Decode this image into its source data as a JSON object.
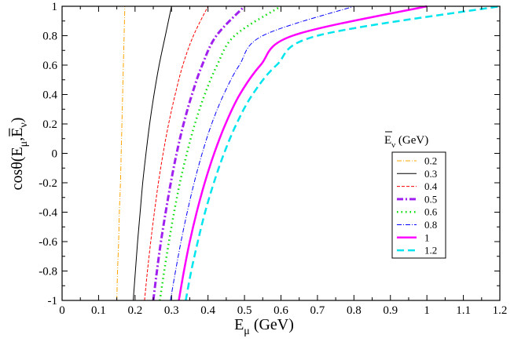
{
  "chart_data": {
    "type": "line",
    "title": "",
    "xlabel": "E",
    "xlabel_sub": "μ",
    "xlabel_unit": " (GeV)",
    "ylabel": "cosθ(E",
    "ylabel_sub1": "μ",
    "ylabel_sep": ",",
    "ylabel_main2": "E",
    "ylabel_sub2": "ν",
    "ylabel_end": ")",
    "xlim": [
      0,
      1.2
    ],
    "ylim": [
      -1,
      1
    ],
    "xticks": [
      "0",
      "0.1",
      "0.2",
      "0.3",
      "0.4",
      "0.5",
      "0.6",
      "0.7",
      "0.8",
      "0.9",
      "1",
      "1.1",
      "1.2"
    ],
    "yticks": [
      "-1",
      "-0.8",
      "-0.6",
      "-0.4",
      "-0.2",
      "0",
      "0.2",
      "0.4",
      "0.6",
      "0.8",
      "1"
    ],
    "legend": {
      "title_main": "E",
      "title_sub": "ν",
      "title_unit": " (GeV)",
      "position": "right"
    },
    "series": [
      {
        "name": "0.2",
        "color": "#ffa500",
        "dash": "6,2,1,2",
        "width": 1,
        "points": [
          [
            0.15,
            -1
          ],
          [
            0.152,
            -0.8
          ],
          [
            0.155,
            -0.6
          ],
          [
            0.157,
            -0.4
          ],
          [
            0.16,
            -0.2
          ],
          [
            0.162,
            0
          ],
          [
            0.164,
            0.2
          ],
          [
            0.166,
            0.4
          ],
          [
            0.168,
            0.6
          ],
          [
            0.17,
            0.8
          ],
          [
            0.172,
            1
          ]
        ]
      },
      {
        "name": "0.3",
        "color": "#000000",
        "dash": "",
        "width": 1,
        "points": [
          [
            0.195,
            -1
          ],
          [
            0.201,
            -0.8
          ],
          [
            0.207,
            -0.6
          ],
          [
            0.214,
            -0.4
          ],
          [
            0.221,
            -0.2
          ],
          [
            0.23,
            0
          ],
          [
            0.24,
            0.2
          ],
          [
            0.252,
            0.4
          ],
          [
            0.266,
            0.6
          ],
          [
            0.283,
            0.8
          ],
          [
            0.3,
            1
          ]
        ]
      },
      {
        "name": "0.4",
        "color": "#ff0000",
        "dash": "4,2",
        "width": 1,
        "points": [
          [
            0.226,
            -1
          ],
          [
            0.234,
            -0.8
          ],
          [
            0.243,
            -0.6
          ],
          [
            0.253,
            -0.4
          ],
          [
            0.264,
            -0.2
          ],
          [
            0.277,
            0
          ],
          [
            0.292,
            0.2
          ],
          [
            0.31,
            0.4
          ],
          [
            0.331,
            0.6
          ],
          [
            0.36,
            0.8
          ],
          [
            0.4,
            1
          ]
        ]
      },
      {
        "name": "0.5",
        "color": "#a020f0",
        "dash": "8,3,2,3",
        "width": 3,
        "points": [
          [
            0.25,
            -1
          ],
          [
            0.26,
            -0.8
          ],
          [
            0.271,
            -0.6
          ],
          [
            0.284,
            -0.4
          ],
          [
            0.298,
            -0.2
          ],
          [
            0.314,
            0
          ],
          [
            0.333,
            0.2
          ],
          [
            0.356,
            0.4
          ],
          [
            0.384,
            0.6
          ],
          [
            0.423,
            0.8
          ],
          [
            0.5,
            1
          ]
        ]
      },
      {
        "name": "0.6",
        "color": "#00dd00",
        "dash": "1.5,4",
        "width": 2.5,
        "points": [
          [
            0.268,
            -1
          ],
          [
            0.28,
            -0.8
          ],
          [
            0.293,
            -0.6
          ],
          [
            0.307,
            -0.4
          ],
          [
            0.323,
            -0.2
          ],
          [
            0.342,
            0
          ],
          [
            0.364,
            0.2
          ],
          [
            0.391,
            0.4
          ],
          [
            0.425,
            0.6
          ],
          [
            0.473,
            0.8
          ],
          [
            0.6,
            1
          ]
        ]
      },
      {
        "name": "0.8",
        "color": "#0000ff",
        "dash": "6,2,1,2",
        "width": 1,
        "points": [
          [
            0.297,
            -1
          ],
          [
            0.311,
            -0.8
          ],
          [
            0.326,
            -0.6
          ],
          [
            0.343,
            -0.4
          ],
          [
            0.362,
            -0.2
          ],
          [
            0.384,
            0
          ],
          [
            0.41,
            0.2
          ],
          [
            0.443,
            0.4
          ],
          [
            0.486,
            0.6
          ],
          [
            0.55,
            0.8
          ],
          [
            0.8,
            1
          ]
        ]
      },
      {
        "name": "1",
        "color": "#ff00ff",
        "dash": "",
        "width": 2.5,
        "points": [
          [
            0.32,
            -1
          ],
          [
            0.334,
            -0.8
          ],
          [
            0.35,
            -0.6
          ],
          [
            0.369,
            -0.4
          ],
          [
            0.391,
            -0.2
          ],
          [
            0.417,
            0
          ],
          [
            0.448,
            0.2
          ],
          [
            0.487,
            0.4
          ],
          [
            0.544,
            0.6
          ],
          [
            0.632,
            0.8
          ],
          [
            1.0,
            1
          ]
        ]
      },
      {
        "name": "1.2",
        "color": "#00e5ee",
        "dash": "9,5",
        "width": 2.5,
        "points": [
          [
            0.339,
            -1
          ],
          [
            0.354,
            -0.8
          ],
          [
            0.372,
            -0.6
          ],
          [
            0.392,
            -0.4
          ],
          [
            0.416,
            -0.2
          ],
          [
            0.444,
            0
          ],
          [
            0.478,
            0.2
          ],
          [
            0.522,
            0.4
          ],
          [
            0.588,
            0.6
          ],
          [
            0.7,
            0.8
          ],
          [
            1.2,
            1
          ]
        ]
      }
    ]
  }
}
